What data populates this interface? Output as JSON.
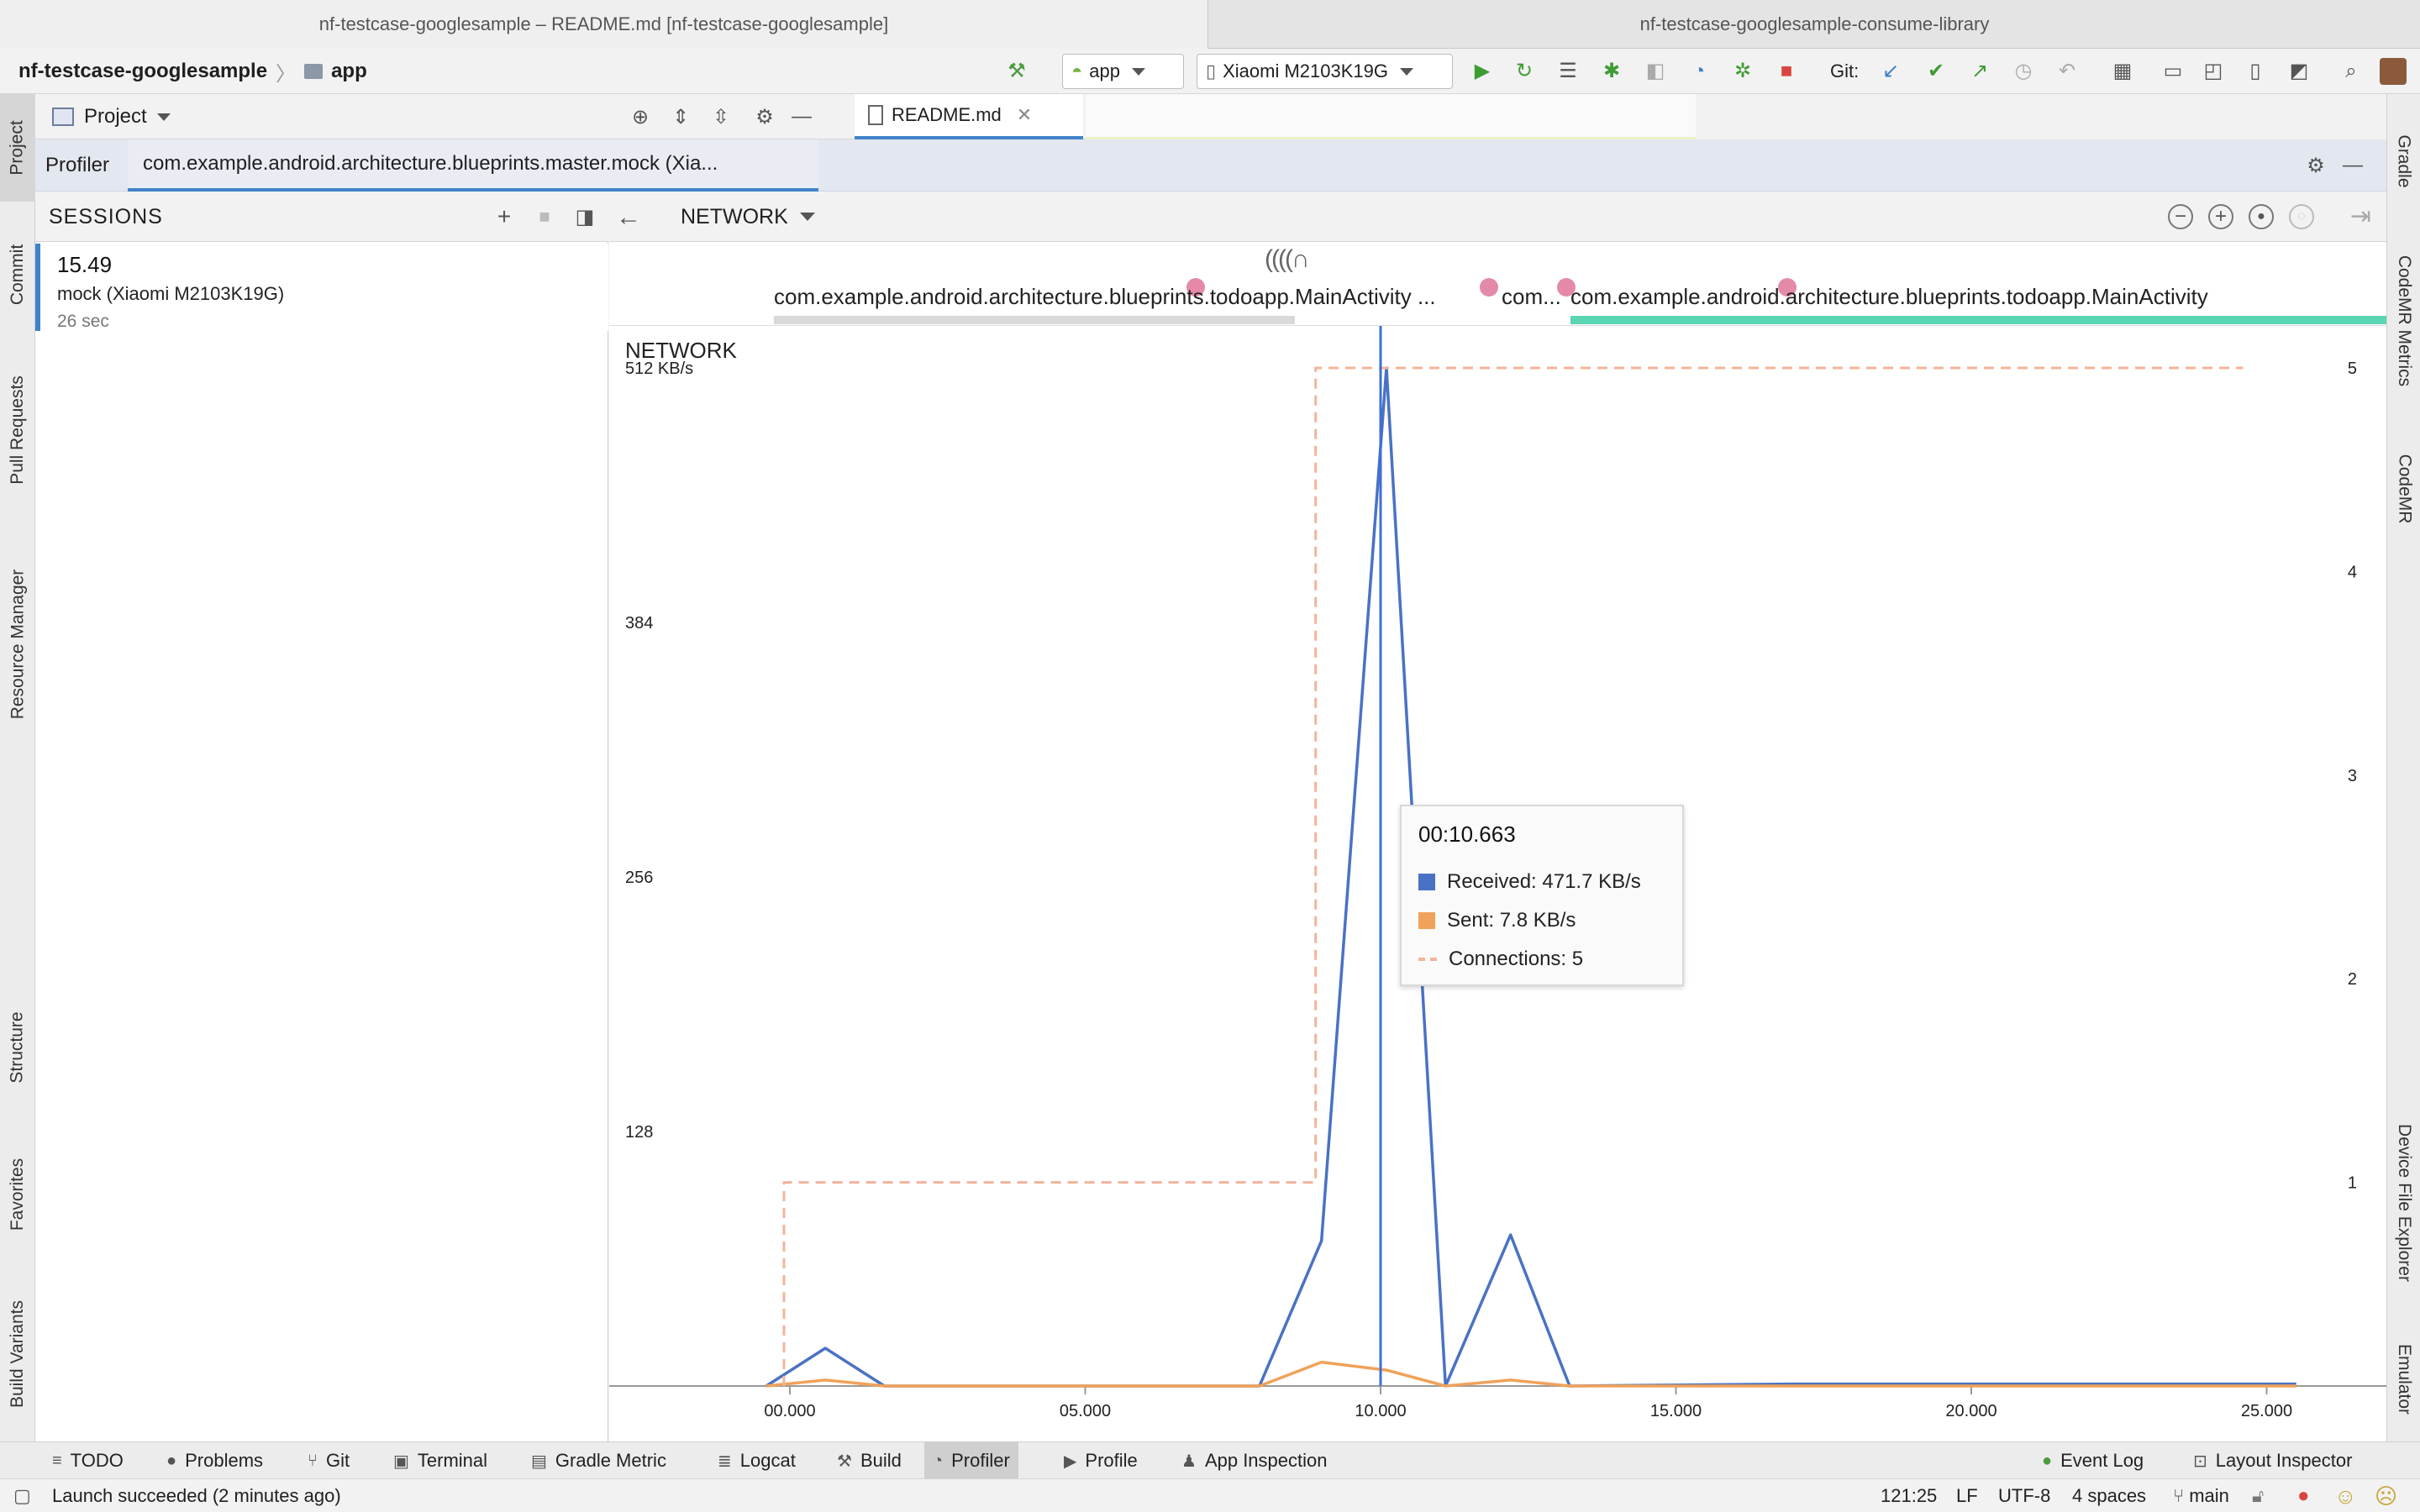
{
  "window_tabs": [
    {
      "label": "nf-testcase-googlesample – README.md [nf-testcase-googlesample]",
      "active": true
    },
    {
      "label": "nf-testcase-googlesample-consume-library",
      "active": false
    }
  ],
  "toolbar": {
    "project_name": "nf-testcase-googlesample",
    "module_name": "app",
    "run_config": "app",
    "device": "Xiaomi M2103K19G",
    "git_label": "Git:"
  },
  "left_tool_tabs": [
    "Project",
    "Commit",
    "Pull Requests",
    "Resource Manager",
    "Structure",
    "Favorites",
    "Build Variants"
  ],
  "right_tool_tabs": [
    "Gradle",
    "CodeMR Metrics",
    "CodeMR",
    "Device File Explorer",
    "Emulator"
  ],
  "project_panel": {
    "title": "Project"
  },
  "editor_tab": {
    "label": "README.md"
  },
  "profiler": {
    "label": "Profiler",
    "session_tab": "com.example.android.architecture.blueprints.master.mock (Xia..."
  },
  "sessions": {
    "title": "SESSIONS",
    "items": [
      {
        "time": "15.49",
        "device": "mock (Xiaomi M2103K19G)",
        "duration": "26 sec"
      }
    ]
  },
  "monitor": {
    "selected": "NETWORK"
  },
  "activity_lane": {
    "activities": [
      "com.example.android.architecture.blueprints.todoapp.MainActivity ...",
      "com...",
      "com.example.android.architecture.blueprints.todoapp.MainActivity"
    ],
    "colors": {
      "event_dot": "#e48aa8",
      "active_bar": "#5ad6b4",
      "inactive_bar": "#d9d9d9"
    }
  },
  "chart_data": {
    "type": "line",
    "title": "NETWORK",
    "x_unit": "seconds",
    "x_ticks": [
      "00.000",
      "05.000",
      "10.000",
      "15.000",
      "20.000",
      "25.000"
    ],
    "y_left_ticks": [
      "512 KB/s",
      "384",
      "256",
      "128"
    ],
    "y_left_range": [
      0,
      512
    ],
    "y_right_ticks": [
      "5",
      "4",
      "3",
      "2",
      "1"
    ],
    "y_right_range": [
      0,
      5
    ],
    "cursor_x": 10.0,
    "series": [
      {
        "name": "Received",
        "axis": "left",
        "color": "#4a72c4",
        "style": "solid",
        "points": [
          [
            -0.4,
            0
          ],
          [
            0.6,
            19
          ],
          [
            1.6,
            0
          ],
          [
            7.95,
            0
          ],
          [
            9.0,
            73
          ],
          [
            10.1,
            512
          ],
          [
            11.1,
            0
          ],
          [
            12.2,
            76
          ],
          [
            13.2,
            0
          ],
          [
            17.0,
            1
          ],
          [
            25.5,
            1
          ]
        ]
      },
      {
        "name": "Sent",
        "axis": "left",
        "color": "#f0a25a",
        "style": "solid",
        "points": [
          [
            -0.4,
            0
          ],
          [
            0.6,
            3
          ],
          [
            1.6,
            0
          ],
          [
            7.95,
            0
          ],
          [
            9.0,
            12
          ],
          [
            10.1,
            8
          ],
          [
            11.1,
            0
          ],
          [
            12.2,
            3
          ],
          [
            13.2,
            0
          ],
          [
            25.5,
            0
          ]
        ]
      },
      {
        "name": "Connections",
        "axis": "right",
        "color": "#f2b49a",
        "style": "dashed",
        "points": [
          [
            -0.1,
            0
          ],
          [
            -0.1,
            1
          ],
          [
            8.9,
            1
          ],
          [
            8.9,
            5
          ],
          [
            24.6,
            5
          ]
        ]
      }
    ],
    "tooltip": {
      "time": "00:10.663",
      "rows": [
        "Received: 471.7 KB/s",
        "Sent: 7.8 KB/s",
        "Connections: 5"
      ]
    }
  },
  "bottom_tools": [
    {
      "label": "TODO",
      "glyph": "≡"
    },
    {
      "label": "Problems",
      "glyph": "●"
    },
    {
      "label": "Git",
      "glyph": "⑂"
    },
    {
      "label": "Terminal",
      "glyph": "▣"
    },
    {
      "label": "Gradle Metric",
      "glyph": "▤"
    },
    {
      "label": "Logcat",
      "glyph": "≣"
    },
    {
      "label": "Build",
      "glyph": "⚒"
    },
    {
      "label": "Profiler",
      "glyph": "◔"
    },
    {
      "label": "Profile",
      "glyph": "▶"
    },
    {
      "label": "App Inspection",
      "glyph": "♟"
    }
  ],
  "bottom_right_tools": [
    {
      "label": "Event Log",
      "glyph": "●"
    },
    {
      "label": "Layout Inspector",
      "glyph": "⊡"
    }
  ],
  "status_bar": {
    "message": "Launch succeeded (2 minutes ago)",
    "position": "121:25",
    "line_ending": "LF",
    "encoding": "UTF-8",
    "indent": "4 spaces",
    "branch": "main"
  }
}
